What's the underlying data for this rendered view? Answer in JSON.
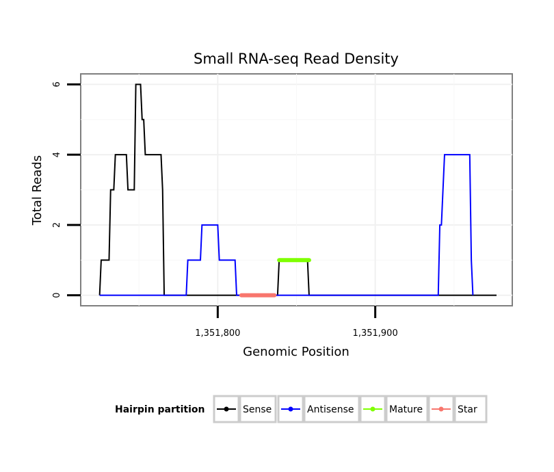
{
  "chart_data": {
    "type": "line",
    "title": "Small RNA-seq Read Density",
    "xlabel": "Genomic Position",
    "ylabel": "Total Reads",
    "xlim": [
      1351713,
      1351987
    ],
    "ylim": [
      -0.3,
      6.3
    ],
    "x_ticks": [
      {
        "value": 1351800,
        "label": "1,351,800"
      },
      {
        "value": 1351900,
        "label": "1,351,900"
      }
    ],
    "y_ticks": [
      {
        "value": 0,
        "label": "0"
      },
      {
        "value": 2,
        "label": "2"
      },
      {
        "value": 4,
        "label": "4"
      },
      {
        "value": 6,
        "label": "6"
      }
    ],
    "grid": true,
    "legend": {
      "title": "Hairpin partition",
      "placement": "bottom",
      "entries": [
        "Sense",
        "Antisense",
        "Mature",
        "Star"
      ]
    },
    "series": [
      {
        "name": "Sense",
        "color": "#000000",
        "points": [
          [
            1351725,
            0
          ],
          [
            1351726,
            1
          ],
          [
            1351731,
            1
          ],
          [
            1351732,
            3
          ],
          [
            1351734,
            3
          ],
          [
            1351735,
            4
          ],
          [
            1351742,
            4
          ],
          [
            1351743,
            3
          ],
          [
            1351747,
            3
          ],
          [
            1351748,
            6
          ],
          [
            1351751,
            6
          ],
          [
            1351752,
            5
          ],
          [
            1351753,
            5
          ],
          [
            1351754,
            4
          ],
          [
            1351764,
            4
          ],
          [
            1351765,
            3
          ],
          [
            1351766,
            0
          ],
          [
            1351838,
            0
          ],
          [
            1351839,
            1
          ],
          [
            1351857,
            1
          ],
          [
            1351858,
            0
          ],
          [
            1351977,
            0
          ]
        ]
      },
      {
        "name": "Antisense",
        "color": "#0000ff",
        "points": [
          [
            1351725,
            0
          ],
          [
            1351780,
            0
          ],
          [
            1351781,
            1
          ],
          [
            1351789,
            1
          ],
          [
            1351790,
            2
          ],
          [
            1351800,
            2
          ],
          [
            1351801,
            1
          ],
          [
            1351811,
            1
          ],
          [
            1351812,
            0
          ],
          [
            1351940,
            0
          ],
          [
            1351941,
            2
          ],
          [
            1351942,
            2
          ],
          [
            1351944,
            4
          ],
          [
            1351960,
            4
          ],
          [
            1351961,
            1
          ],
          [
            1351962,
            0
          ]
        ]
      },
      {
        "name": "Mature",
        "color": "#7fff00",
        "points": [
          [
            1351839,
            1
          ],
          [
            1351858,
            1
          ]
        ]
      },
      {
        "name": "Star",
        "color": "#f8766d",
        "points": [
          [
            1351815,
            0
          ],
          [
            1351836,
            0
          ]
        ]
      }
    ]
  }
}
